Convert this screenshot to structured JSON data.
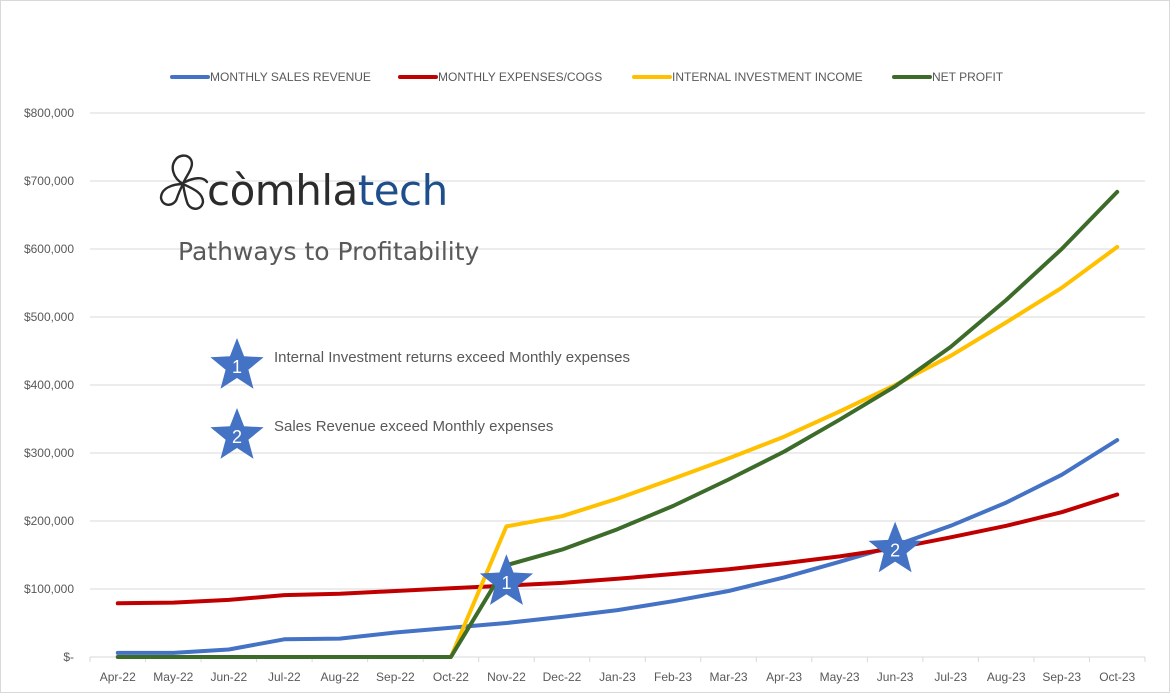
{
  "brand": {
    "name_prefix": "còmhla",
    "name_suffix": "tech",
    "tagline": "Pathways to Profitability"
  },
  "notes": [
    {
      "marker": "1",
      "text": "Internal Investment returns exceed Monthly expenses"
    },
    {
      "marker": "2",
      "text": "Sales Revenue exceed Monthly expenses"
    }
  ],
  "colors": {
    "sales": "#4472c4",
    "expenses": "#c00000",
    "investment": "#ffc000",
    "profit": "#3d6b2a",
    "star": "#4472c4",
    "grid": "#d9d9d9"
  },
  "chart_data": {
    "type": "line",
    "title": "",
    "xlabel": "",
    "ylabel": "",
    "ylim": [
      0,
      800000
    ],
    "yticks": [
      0,
      100000,
      200000,
      300000,
      400000,
      500000,
      600000,
      700000,
      800000
    ],
    "ytick_labels": [
      "$-",
      "$100,000",
      "$200,000",
      "$300,000",
      "$400,000",
      "$500,000",
      "$600,000",
      "$700,000",
      "$800,000"
    ],
    "grid": true,
    "legend_position": "top",
    "categories": [
      "Apr-22",
      "May-22",
      "Jun-22",
      "Jul-22",
      "Aug-22",
      "Sep-22",
      "Oct-22",
      "Nov-22",
      "Dec-22",
      "Jan-23",
      "Feb-23",
      "Mar-23",
      "Apr-23",
      "May-23",
      "Jun-23",
      "Jul-23",
      "Aug-23",
      "Sep-23",
      "Oct-23"
    ],
    "series": [
      {
        "name": "MONTHLY SALES REVENUE",
        "color": "#4472c4",
        "values": [
          6000,
          6000,
          11000,
          26000,
          27000,
          36000,
          43000,
          50000,
          59000,
          69000,
          82000,
          97000,
          117000,
          140000,
          164000,
          193000,
          227000,
          268000,
          319000
        ]
      },
      {
        "name": "MONTHLY EXPENSES/COGS",
        "color": "#c00000",
        "values": [
          79000,
          80000,
          84000,
          91000,
          93000,
          97000,
          101000,
          105000,
          109000,
          115000,
          122000,
          129000,
          138000,
          148000,
          160000,
          176000,
          193000,
          213000,
          239000
        ]
      },
      {
        "name": "INTERNAL INVESTMENT INCOME",
        "color": "#ffc000",
        "values": [
          0,
          0,
          0,
          0,
          0,
          0,
          0,
          192000,
          207000,
          233000,
          262000,
          292000,
          324000,
          361000,
          400000,
          443000,
          492000,
          543000,
          603000
        ]
      },
      {
        "name": "NET PROFIT",
        "color": "#3d6b2a",
        "values": [
          0,
          0,
          0,
          0,
          0,
          0,
          0,
          135000,
          158000,
          188000,
          222000,
          261000,
          302000,
          349000,
          398000,
          456000,
          525000,
          600000,
          684000
        ]
      }
    ],
    "annotations": [
      {
        "label": "1",
        "x": "Nov-22",
        "y": 110000
      },
      {
        "label": "2",
        "x": "Jun-23",
        "y": 158000
      }
    ]
  }
}
